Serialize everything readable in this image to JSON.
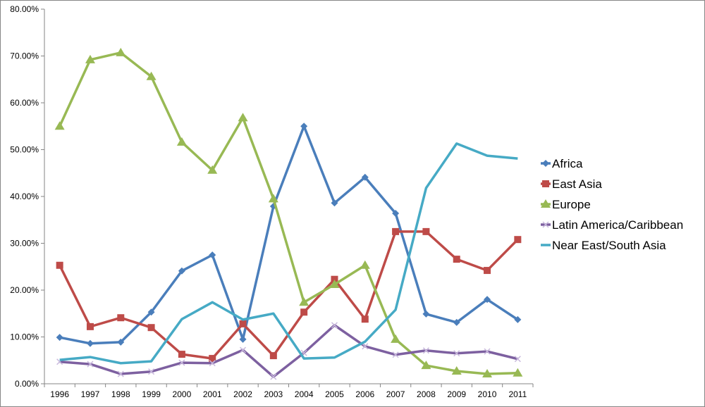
{
  "chart_data": {
    "type": "line",
    "title": "",
    "xlabel": "",
    "ylabel": "",
    "ylim": [
      0,
      80
    ],
    "y_tick_labels": [
      "0.00%",
      "10.00%",
      "20.00%",
      "30.00%",
      "40.00%",
      "50.00%",
      "60.00%",
      "70.00%",
      "80.00%"
    ],
    "y_ticks": [
      0,
      10,
      20,
      30,
      40,
      50,
      60,
      70,
      80
    ],
    "categories": [
      "1996",
      "1997",
      "1998",
      "1999",
      "2000",
      "2001",
      "2002",
      "2003",
      "2004",
      "2005",
      "2006",
      "2007",
      "2008",
      "2009",
      "2010",
      "2011"
    ],
    "grid": false,
    "legend_position": "right",
    "series": [
      {
        "name": "Africa",
        "color": "#4a7ebb",
        "marker": "diamond",
        "values": [
          9.9,
          8.6,
          8.9,
          15.3,
          24.1,
          27.5,
          9.5,
          37.9,
          55.0,
          38.6,
          44.1,
          36.4,
          14.9,
          13.1,
          18.0,
          13.7
        ]
      },
      {
        "name": "East Asia",
        "color": "#be4b48",
        "marker": "square",
        "values": [
          25.3,
          12.2,
          14.1,
          12.0,
          6.3,
          5.4,
          12.8,
          6.0,
          15.3,
          22.3,
          13.8,
          32.5,
          32.5,
          26.6,
          24.2,
          30.8
        ]
      },
      {
        "name": "Europe",
        "color": "#98b954",
        "marker": "triangle",
        "values": [
          55.0,
          69.2,
          70.7,
          65.6,
          51.6,
          45.6,
          56.8,
          39.5,
          17.4,
          21.2,
          25.3,
          9.5,
          3.9,
          2.7,
          2.1,
          2.3
        ]
      },
      {
        "name": "Latin America/Caribbean",
        "color": "#7d60a0",
        "marker": "x",
        "values": [
          4.7,
          4.2,
          2.1,
          2.6,
          4.5,
          4.4,
          7.2,
          1.5,
          6.6,
          12.5,
          8.0,
          6.2,
          7.1,
          6.5,
          6.9,
          5.3
        ]
      },
      {
        "name": "Near East/South Asia",
        "color": "#46aac5",
        "marker": "none",
        "values": [
          5.1,
          5.7,
          4.4,
          4.8,
          13.8,
          17.4,
          13.7,
          15.0,
          5.4,
          5.6,
          9.0,
          15.8,
          41.8,
          51.3,
          48.7,
          48.1
        ]
      }
    ]
  }
}
